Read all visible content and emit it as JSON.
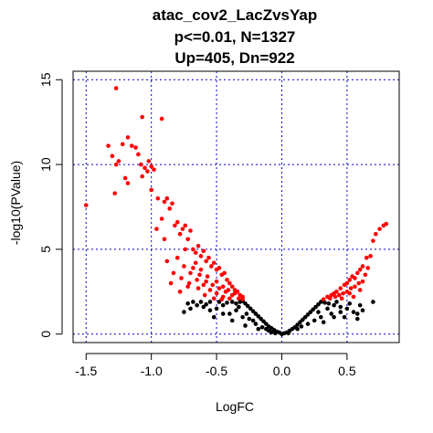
{
  "chart_data": {
    "type": "scatter",
    "title_lines": [
      "atac_cov2_LacZvsYap",
      "p<=0.01, N=1327",
      "Up=405, Dn=922"
    ],
    "xlabel": "LogFC",
    "ylabel": "-log10(PValue)",
    "xlim": [
      -1.6,
      0.9
    ],
    "ylim": [
      -0.5,
      15.5
    ],
    "x_ticks": [
      -1.5,
      -1.0,
      -0.5,
      0.0,
      0.5
    ],
    "x_tick_labels": [
      "-1.5",
      "-1.0",
      "-0.5",
      "0.0",
      "0.5"
    ],
    "y_ticks": [
      0,
      5,
      10,
      15
    ],
    "y_tick_labels": [
      "0",
      "5",
      "10",
      "15"
    ],
    "grid": true,
    "grid_x": [
      -1.5,
      -1.0,
      -0.5,
      0.0,
      0.5
    ],
    "grid_y": [
      0,
      5,
      10,
      15
    ],
    "colors": {
      "significant": "#ff0000",
      "not_significant": "#000000",
      "grid": "#0000cc",
      "axis": "#000000"
    },
    "significance_threshold_neglog10p": 2,
    "series": [
      {
        "color": "#ff0000",
        "points": [
          [
            -1.5,
            7.6
          ],
          [
            -1.27,
            14.5
          ],
          [
            -1.07,
            12.8
          ],
          [
            -0.92,
            12.7
          ],
          [
            -1.33,
            11.1
          ],
          [
            -1.3,
            10.5
          ],
          [
            -1.27,
            10.0
          ],
          [
            -1.25,
            10.2
          ],
          [
            -1.22,
            11.2
          ],
          [
            -1.18,
            11.6
          ],
          [
            -1.15,
            11.1
          ],
          [
            -1.12,
            11.0
          ],
          [
            -1.1,
            10.6
          ],
          [
            -1.08,
            10.0
          ],
          [
            -1.05,
            9.8
          ],
          [
            -1.03,
            9.6
          ],
          [
            -1.0,
            9.9
          ],
          [
            -0.98,
            9.7
          ],
          [
            -1.28,
            8.3
          ],
          [
            -1.2,
            9.2
          ],
          [
            -1.18,
            8.9
          ],
          [
            -1.07,
            9.3
          ],
          [
            -1.02,
            10.2
          ],
          [
            -1.0,
            8.5
          ],
          [
            -0.95,
            8.0
          ],
          [
            -0.9,
            7.8
          ],
          [
            -0.88,
            8.0
          ],
          [
            -0.86,
            7.4
          ],
          [
            -0.84,
            7.7
          ],
          [
            -0.82,
            6.4
          ],
          [
            -0.8,
            6.6
          ],
          [
            -0.78,
            5.9
          ],
          [
            -0.76,
            6.2
          ],
          [
            -0.74,
            6.4
          ],
          [
            -0.72,
            5.6
          ],
          [
            -0.7,
            6.1
          ],
          [
            -0.68,
            5.0
          ],
          [
            -0.66,
            4.8
          ],
          [
            -0.64,
            5.2
          ],
          [
            -0.62,
            4.6
          ],
          [
            -0.6,
            4.9
          ],
          [
            -0.58,
            4.3
          ],
          [
            -0.56,
            4.5
          ],
          [
            -0.54,
            4.0
          ],
          [
            -0.52,
            4.2
          ],
          [
            -0.5,
            3.8
          ],
          [
            -0.48,
            3.9
          ],
          [
            -0.46,
            3.5
          ],
          [
            -0.44,
            3.6
          ],
          [
            -0.42,
            3.2
          ],
          [
            -0.4,
            3.0
          ],
          [
            -0.38,
            2.8
          ],
          [
            -0.36,
            2.6
          ],
          [
            -0.34,
            2.5
          ],
          [
            -0.32,
            2.3
          ],
          [
            -0.3,
            2.2
          ],
          [
            -0.8,
            4.5
          ],
          [
            -0.75,
            4.0
          ],
          [
            -0.7,
            3.6
          ],
          [
            -0.65,
            3.2
          ],
          [
            -0.6,
            2.9
          ],
          [
            -0.55,
            2.6
          ],
          [
            -0.5,
            2.4
          ],
          [
            -0.45,
            2.2
          ],
          [
            -0.4,
            2.1
          ],
          [
            -0.85,
            3.0
          ],
          [
            -0.78,
            2.5
          ],
          [
            -0.72,
            2.8
          ],
          [
            -0.68,
            3.9
          ],
          [
            -0.63,
            3.5
          ],
          [
            -0.58,
            3.1
          ],
          [
            -0.53,
            2.9
          ],
          [
            -0.48,
            2.7
          ],
          [
            -0.43,
            2.5
          ],
          [
            -0.38,
            2.3
          ],
          [
            -0.33,
            2.1
          ],
          [
            -0.92,
            6.8
          ],
          [
            -0.9,
            5.6
          ],
          [
            -0.96,
            6.2
          ],
          [
            -0.74,
            5.0
          ],
          [
            -0.66,
            4.2
          ],
          [
            -0.62,
            3.8
          ],
          [
            -0.57,
            3.4
          ],
          [
            -0.5,
            3.1
          ],
          [
            -0.45,
            2.8
          ],
          [
            -0.41,
            2.6
          ],
          [
            -0.36,
            2.4
          ],
          [
            -0.3,
            2.05
          ],
          [
            -0.83,
            3.6
          ],
          [
            -0.77,
            3.3
          ],
          [
            -0.71,
            3.0
          ],
          [
            -0.64,
            2.7
          ],
          [
            -0.59,
            2.3
          ],
          [
            -0.52,
            2.1
          ],
          [
            -0.46,
            2.05
          ],
          [
            -0.88,
            4.3
          ],
          [
            0.32,
            2.05
          ],
          [
            0.35,
            2.2
          ],
          [
            0.38,
            2.3
          ],
          [
            0.4,
            2.4
          ],
          [
            0.42,
            2.5
          ],
          [
            0.45,
            2.7
          ],
          [
            0.48,
            2.9
          ],
          [
            0.5,
            3.0
          ],
          [
            0.52,
            3.2
          ],
          [
            0.54,
            3.4
          ],
          [
            0.56,
            3.3
          ],
          [
            0.58,
            3.6
          ],
          [
            0.6,
            3.8
          ],
          [
            0.62,
            4.0
          ],
          [
            0.65,
            4.5
          ],
          [
            0.68,
            4.6
          ],
          [
            0.7,
            5.5
          ],
          [
            0.72,
            5.9
          ],
          [
            0.75,
            6.2
          ],
          [
            0.78,
            6.4
          ],
          [
            0.8,
            6.5
          ],
          [
            0.44,
            2.3
          ],
          [
            0.47,
            2.4
          ],
          [
            0.5,
            2.5
          ],
          [
            0.53,
            2.7
          ],
          [
            0.56,
            2.8
          ],
          [
            0.59,
            3.0
          ],
          [
            0.62,
            3.1
          ],
          [
            0.37,
            2.1
          ],
          [
            0.41,
            2.2
          ],
          [
            0.55,
            2.2
          ],
          [
            0.6,
            2.6
          ],
          [
            0.64,
            3.5
          ],
          [
            0.66,
            3.9
          ],
          [
            0.52,
            2.4
          ],
          [
            0.46,
            2.1
          ]
        ]
      },
      {
        "color": "#000000",
        "points": [
          [
            0.0,
            0.0
          ],
          [
            -0.02,
            0.1
          ],
          [
            -0.04,
            0.15
          ],
          [
            -0.06,
            0.25
          ],
          [
            -0.08,
            0.35
          ],
          [
            -0.1,
            0.45
          ],
          [
            -0.12,
            0.6
          ],
          [
            -0.14,
            0.75
          ],
          [
            -0.16,
            0.9
          ],
          [
            -0.18,
            1.05
          ],
          [
            -0.2,
            1.2
          ],
          [
            -0.22,
            1.35
          ],
          [
            -0.24,
            1.5
          ],
          [
            -0.26,
            1.65
          ],
          [
            -0.28,
            1.8
          ],
          [
            -0.3,
            1.95
          ],
          [
            -0.32,
            1.9
          ],
          [
            -0.35,
            1.8
          ],
          [
            -0.38,
            1.9
          ],
          [
            -0.42,
            1.85
          ],
          [
            -0.45,
            1.7
          ],
          [
            -0.5,
            1.5
          ],
          [
            -0.55,
            1.4
          ],
          [
            -0.6,
            1.6
          ],
          [
            -0.65,
            1.7
          ],
          [
            -0.7,
            1.5
          ],
          [
            -0.75,
            1.3
          ],
          [
            -0.52,
            1.0
          ],
          [
            -0.62,
            1.9
          ],
          [
            -0.4,
            1.2
          ],
          [
            -0.3,
            1.0
          ],
          [
            -0.2,
            0.6
          ],
          [
            -0.15,
            0.4
          ],
          [
            -0.1,
            0.2
          ],
          [
            -0.25,
            0.9
          ],
          [
            -0.35,
            1.4
          ],
          [
            -0.45,
            1.2
          ],
          [
            -0.28,
            0.5
          ],
          [
            -0.18,
            0.3
          ],
          [
            -0.08,
            0.1
          ],
          [
            0.02,
            0.05
          ],
          [
            0.04,
            0.1
          ],
          [
            0.06,
            0.2
          ],
          [
            0.08,
            0.3
          ],
          [
            0.1,
            0.4
          ],
          [
            0.12,
            0.55
          ],
          [
            0.14,
            0.7
          ],
          [
            0.16,
            0.85
          ],
          [
            0.18,
            1.0
          ],
          [
            0.2,
            1.15
          ],
          [
            0.22,
            1.3
          ],
          [
            0.24,
            1.45
          ],
          [
            0.26,
            1.6
          ],
          [
            0.28,
            1.75
          ],
          [
            0.3,
            1.9
          ],
          [
            0.33,
            1.85
          ],
          [
            0.36,
            1.8
          ],
          [
            0.4,
            1.7
          ],
          [
            0.45,
            1.6
          ],
          [
            0.5,
            1.5
          ],
          [
            0.55,
            1.3
          ],
          [
            0.58,
            1.2
          ],
          [
            0.62,
            1.4
          ],
          [
            0.7,
            1.9
          ],
          [
            0.58,
            0.9
          ],
          [
            0.48,
            1.0
          ],
          [
            0.38,
            1.2
          ],
          [
            0.3,
            1.0
          ],
          [
            0.2,
            0.6
          ],
          [
            0.12,
            0.3
          ],
          [
            0.05,
            0.05
          ],
          [
            0.25,
            0.8
          ],
          [
            0.35,
            1.5
          ],
          [
            0.42,
            1.9
          ],
          [
            0.52,
            1.8
          ],
          [
            -0.05,
            0.05
          ],
          [
            -0.12,
            0.3
          ],
          [
            -0.22,
            0.8
          ],
          [
            -0.33,
            1.6
          ],
          [
            -0.48,
            1.9
          ],
          [
            -0.58,
            1.75
          ],
          [
            -0.68,
            1.9
          ],
          [
            -0.72,
            1.8
          ],
          [
            0.15,
            0.45
          ],
          [
            0.28,
            1.3
          ],
          [
            0.45,
            1.3
          ],
          [
            0.6,
            1.7
          ],
          [
            -0.38,
            0.8
          ],
          [
            -0.27,
            1.2
          ],
          [
            0.32,
            0.7
          ],
          [
            0.4,
            1.0
          ],
          [
            -0.55,
            1.9
          ]
        ]
      }
    ]
  }
}
